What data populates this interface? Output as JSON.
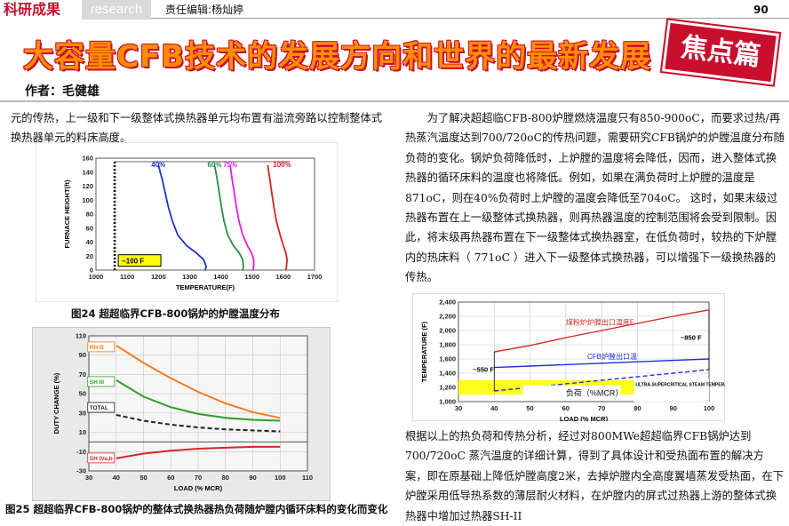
{
  "header": {
    "brand": "科研成果",
    "section": "research",
    "editor": "责任编辑:杨灿婷",
    "page_number": "90"
  },
  "title": "大容量CFB技术的发展方向和世界的最新发展",
  "badge": "焦点篇",
  "author": "作者：毛健雄",
  "left_text": "元的传热，上一级和下一级整体式换热器单元均布置有溢流旁路以控制整体式换热器单元的料床高度。",
  "right_text": "为了解决超超临CFB-800炉膛燃烧温度只有850-900oC，而要求过热/再热蒸汽温度达到700/720oC的传热问题，需要研究CFB锅炉的炉膛温度分布随负荷的变化。锅炉负荷降低时，上炉膛的温度将会降低，因而，进入整体式换热器的循环床料的温度也将降低。例如，如果在满负荷时上炉膛的温度是871oC，则在40%负荷时上炉膛的温度会降低至704oC。 这时，如果末级过热器布置在上一级整体式换热器，则再热器温度的控制范围将会受到限制。因此，将末级再热器布置在下一级整体式换热器室，在低负荷时，较热的下炉膛内的热床料（ 771oC ）进入下一级整体式换热器，可以增强下一级换热器的传热。",
  "right_text2": "根据以上的热负荷和传热分析，经过对800MWe超超临界CFB锅炉达到700/720oC 蒸汽温度的详细计算，得到了具体设计和受热面布置的解决方案，即在原基础上降低炉膛高度2米，去掉炉膛内全高度翼墙蒸发受热面，在下炉膛采用低导热系数的薄层耐火材料，在炉膛内的屏式过热器上游的整体式换热器中增加过热器SH-II",
  "caption24": "图24 超超临界CFB-800锅炉的炉膛温度分布",
  "caption25": "图25  超超临界CFB-800锅炉的整体式换热器热负荷随炉膛内循环床料的变化而变化",
  "chart_data": [
    {
      "type": "line",
      "xlabel": "TEMPERATURE(F)",
      "ylabel": "FURNACE HEIGHT(ft)",
      "xlim": [
        1000,
        1700
      ],
      "ylim": [
        0,
        160
      ],
      "xticks": [
        "1000",
        "1100",
        "1200",
        "1300",
        "1400",
        "1500",
        "1600",
        "1700"
      ],
      "yticks": [
        "0",
        "20",
        "40",
        "60",
        "80",
        "100",
        "120",
        "140",
        "160"
      ],
      "annotation": "~100 F",
      "colors": {
        "40%": "#1f2fd6",
        "60%": "#2a8a4a",
        "75%": "#e020e0",
        "100%": "#e02020"
      },
      "series": [
        {
          "name": "40%",
          "points": [
            [
              1200,
              150
            ],
            [
              1212,
              130
            ],
            [
              1222,
              110
            ],
            [
              1232,
              90
            ],
            [
              1245,
              70
            ],
            [
              1262,
              50
            ],
            [
              1290,
              35
            ],
            [
              1320,
              25
            ],
            [
              1345,
              15
            ],
            [
              1353,
              5
            ],
            [
              1350,
              0
            ]
          ]
        },
        {
          "name": "60%",
          "points": [
            [
              1380,
              150
            ],
            [
              1388,
              130
            ],
            [
              1395,
              110
            ],
            [
              1402,
              90
            ],
            [
              1410,
              70
            ],
            [
              1422,
              50
            ],
            [
              1440,
              35
            ],
            [
              1458,
              25
            ],
            [
              1470,
              15
            ],
            [
              1472,
              5
            ],
            [
              1470,
              0
            ]
          ]
        },
        {
          "name": "75%",
          "points": [
            [
              1430,
              150
            ],
            [
              1436,
              130
            ],
            [
              1443,
              110
            ],
            [
              1450,
              90
            ],
            [
              1458,
              70
            ],
            [
              1470,
              50
            ],
            [
              1485,
              35
            ],
            [
              1498,
              25
            ],
            [
              1505,
              15
            ],
            [
              1505,
              5
            ],
            [
              1503,
              0
            ]
          ]
        },
        {
          "name": "100%",
          "points": [
            [
              1550,
              150
            ],
            [
              1557,
              130
            ],
            [
              1563,
              110
            ],
            [
              1570,
              90
            ],
            [
              1578,
              70
            ],
            [
              1590,
              50
            ],
            [
              1600,
              35
            ],
            [
              1608,
              25
            ],
            [
              1612,
              15
            ],
            [
              1610,
              5
            ],
            [
              1608,
              0
            ]
          ]
        }
      ]
    },
    {
      "type": "line",
      "xlabel": "LOAD (% MCR)",
      "ylabel": "DUTY CHANGE (%)",
      "xlim": [
        30,
        110
      ],
      "ylim": [
        -30,
        110
      ],
      "xticks": [
        "30",
        "40",
        "50",
        "60",
        "70",
        "80",
        "90",
        "100",
        "110"
      ],
      "yticks": [
        "-30",
        "-10",
        "10",
        "30",
        "50",
        "70",
        "90",
        "110"
      ],
      "series": [
        {
          "name": "RH-B",
          "color": "#ff7a1a",
          "points": [
            [
              40,
              100
            ],
            [
              50,
              82
            ],
            [
              60,
              66
            ],
            [
              70,
              52
            ],
            [
              80,
              40
            ],
            [
              90,
              31
            ],
            [
              100,
              25
            ]
          ]
        },
        {
          "name": "SH III",
          "color": "#2ca02c",
          "points": [
            [
              40,
              64
            ],
            [
              50,
              47
            ],
            [
              60,
              36
            ],
            [
              70,
              29
            ],
            [
              80,
              25
            ],
            [
              90,
              23
            ],
            [
              100,
              22
            ]
          ]
        },
        {
          "name": "TOTAL",
          "color": "#222222",
          "dashed": true,
          "points": [
            [
              40,
              28
            ],
            [
              50,
              22
            ],
            [
              60,
              18
            ],
            [
              70,
              15
            ],
            [
              80,
              13
            ],
            [
              90,
              12
            ],
            [
              100,
              11
            ]
          ]
        },
        {
          "name": "SH IVa,b",
          "color": "#d62728",
          "points": [
            [
              40,
              -17
            ],
            [
              50,
              -12
            ],
            [
              60,
              -9
            ],
            [
              70,
              -7
            ],
            [
              80,
              -6
            ],
            [
              90,
              -5
            ],
            [
              100,
              -5
            ]
          ]
        }
      ]
    },
    {
      "type": "line",
      "xlabel": "LOAD (% MCR)",
      "ylabel": "TEMPERATURE (F)",
      "xlim": [
        30,
        100
      ],
      "ylim": [
        1000,
        2400
      ],
      "xticks": [
        "30",
        "40",
        "50",
        "60",
        "70",
        "80",
        "90",
        "100"
      ],
      "yticks": [
        "1,000",
        "1,200",
        "1,400",
        "1,600",
        "1,800",
        "2,000",
        "2,200",
        "2,400"
      ],
      "band_label": "ULTRA-SUPERCRITICAL STEAM TEMPERATURE RANGE",
      "delta_low": "~550 F",
      "delta_high": "~850 F",
      "xlabel_cn": "负荷（%MCR）",
      "series": [
        {
          "name": "煤粉炉炉膛出口温度F",
          "color": "#d62728",
          "points": [
            [
              40,
              1700
            ],
            [
              50,
              1790
            ],
            [
              60,
              1900
            ],
            [
              70,
              2000
            ],
            [
              80,
              2100
            ],
            [
              90,
              2200
            ],
            [
              100,
              2290
            ]
          ]
        },
        {
          "name": "CFB炉膛出口温",
          "color": "#1f2fd6",
          "points": [
            [
              40,
              1480
            ],
            [
              50,
              1500
            ],
            [
              60,
              1520
            ],
            [
              70,
              1540
            ],
            [
              80,
              1560
            ],
            [
              90,
              1580
            ],
            [
              100,
              1600
            ]
          ]
        },
        {
          "name": "dashed",
          "color": "#1f2fd6",
          "dashed": true,
          "points": [
            [
              40,
              1150
            ],
            [
              100,
              1450
            ]
          ]
        }
      ]
    }
  ]
}
